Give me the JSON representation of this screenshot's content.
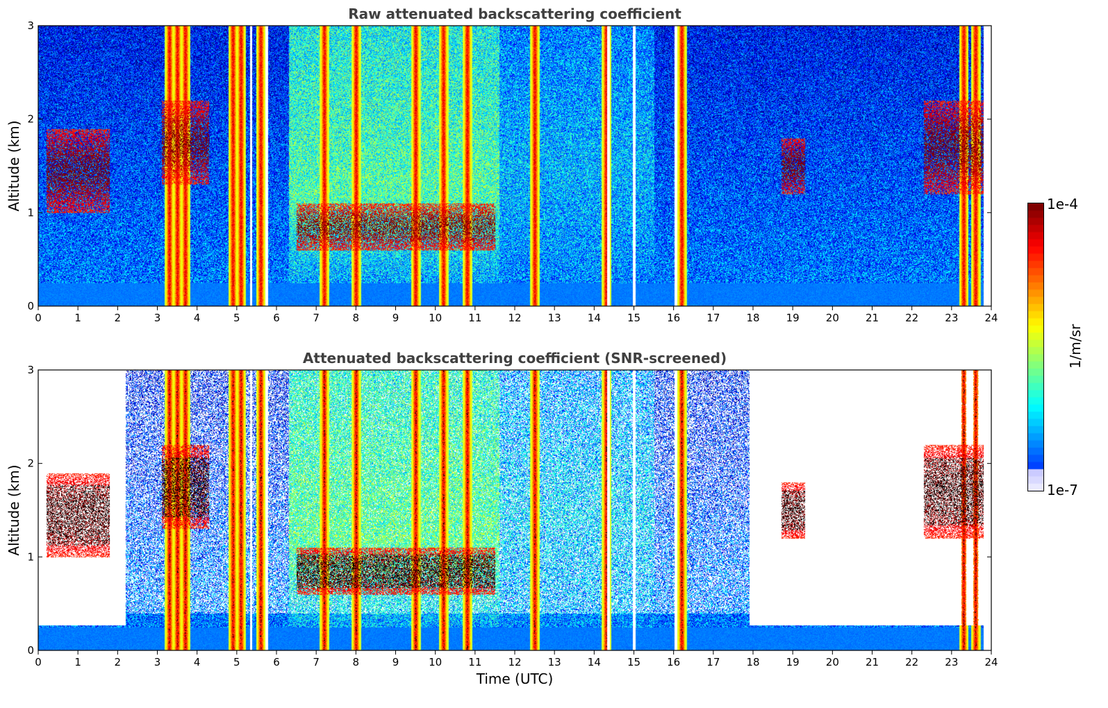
{
  "chart_data": [
    {
      "type": "heatmap",
      "title": "Raw attenuated backscattering coefficient",
      "xlabel": "",
      "ylabel": "Altitude (km)",
      "xlim": [
        0,
        24
      ],
      "ylim": [
        0,
        3
      ],
      "xticks": [
        "0",
        "1",
        "2",
        "3",
        "4",
        "5",
        "6",
        "7",
        "8",
        "9",
        "10",
        "11",
        "12",
        "13",
        "14",
        "15",
        "16",
        "17",
        "18",
        "19",
        "20",
        "21",
        "22",
        "23",
        "24"
      ],
      "yticks": [
        "0",
        "1",
        "2",
        "3"
      ],
      "x_unit": "hours UTC",
      "y_unit": "km",
      "colormap": "jet",
      "screened": false
    },
    {
      "type": "heatmap",
      "title": "Attenuated backscattering coefficient (SNR-screened)",
      "xlabel": "Time (UTC)",
      "ylabel": "Altitude (km)",
      "xlim": [
        0,
        24
      ],
      "ylim": [
        0,
        3
      ],
      "xticks": [
        "0",
        "1",
        "2",
        "3",
        "4",
        "5",
        "6",
        "7",
        "8",
        "9",
        "10",
        "11",
        "12",
        "13",
        "14",
        "15",
        "16",
        "17",
        "18",
        "19",
        "20",
        "21",
        "22",
        "23",
        "24"
      ],
      "yticks": [
        "0",
        "1",
        "2",
        "3"
      ],
      "x_unit": "hours UTC",
      "y_unit": "km",
      "colormap": "jet",
      "screened": true
    }
  ],
  "colorbar": {
    "label": "1/m/sr",
    "max_label": "1e-4",
    "min_label": "1e-7",
    "scale": "log",
    "colors": [
      "#e8e8ff",
      "#0000ff",
      "#0080ff",
      "#00e0ff",
      "#40ffc0",
      "#c0ff40",
      "#ffe000",
      "#ff6000",
      "#e00000",
      "#800000"
    ]
  },
  "features": {
    "cloud_columns_hours": [
      3.3,
      3.5,
      3.7,
      4.9,
      5.1,
      5.6,
      7.2,
      8.0,
      9.5,
      10.2,
      10.8,
      12.5,
      14.3,
      16.2,
      23.3,
      23.6
    ],
    "gaps_hours": [
      5.35,
      5.75,
      14.35,
      15.0,
      16.05
    ],
    "elevated_layers": [
      {
        "x0": 6.5,
        "x1": 11.5,
        "y0": 0.6,
        "y1": 1.1
      },
      {
        "x0": 3.1,
        "x1": 4.3,
        "y0": 1.3,
        "y1": 2.2
      },
      {
        "x0": 0.2,
        "x1": 1.8,
        "y0": 1.0,
        "y1": 1.9
      },
      {
        "x0": 18.7,
        "x1": 19.3,
        "y0": 1.2,
        "y1": 1.8
      },
      {
        "x0": 22.3,
        "x1": 23.9,
        "y0": 1.2,
        "y1": 2.2
      }
    ]
  }
}
